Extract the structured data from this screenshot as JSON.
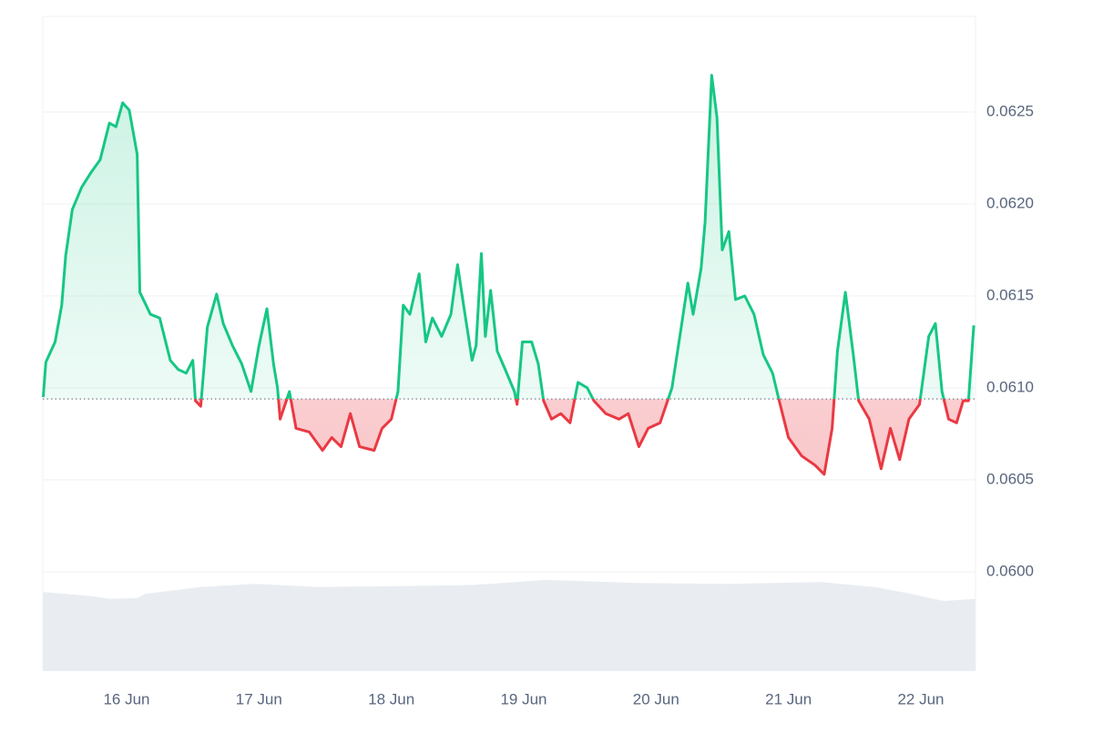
{
  "chart_data": {
    "type": "line",
    "x": [
      15.37,
      15.39,
      15.46,
      15.51,
      15.54,
      15.59,
      15.66,
      15.73,
      15.8,
      15.87,
      15.92,
      15.97,
      16.02,
      16.08,
      16.1,
      16.18,
      16.25,
      16.33,
      16.39,
      16.45,
      16.5,
      16.52,
      16.56,
      16.61,
      16.68,
      16.73,
      16.8,
      16.87,
      16.94,
      17.0,
      17.06,
      17.11,
      17.14,
      17.16,
      17.23,
      17.28,
      17.38,
      17.48,
      17.55,
      17.62,
      17.69,
      17.76,
      17.87,
      17.93,
      18.0,
      18.05,
      18.09,
      18.14,
      18.21,
      18.26,
      18.31,
      18.38,
      18.45,
      18.5,
      18.55,
      18.61,
      18.64,
      18.68,
      18.71,
      18.75,
      18.8,
      18.86,
      18.93,
      18.95,
      18.99,
      19.06,
      19.11,
      19.15,
      19.21,
      19.28,
      19.35,
      19.41,
      19.48,
      19.53,
      19.62,
      19.72,
      19.79,
      19.87,
      19.94,
      20.03,
      20.12,
      20.19,
      20.24,
      20.28,
      20.34,
      20.37,
      20.42,
      20.46,
      20.5,
      20.55,
      20.6,
      20.67,
      20.74,
      20.81,
      20.88,
      20.93,
      21.0,
      21.1,
      21.2,
      21.27,
      21.33,
      21.37,
      21.43,
      21.49,
      21.53,
      21.61,
      21.7,
      21.77,
      21.84,
      21.91,
      21.99,
      22.06,
      22.11,
      22.16,
      22.21,
      22.27,
      22.32,
      22.36,
      22.4
    ],
    "values": [
      0.06095,
      0.06114,
      0.06125,
      0.06145,
      0.06172,
      0.06197,
      0.06209,
      0.06217,
      0.06224,
      0.06244,
      0.06242,
      0.06255,
      0.06251,
      0.06227,
      0.06152,
      0.0614,
      0.06138,
      0.06115,
      0.0611,
      0.06108,
      0.06115,
      0.06093,
      0.0609,
      0.06133,
      0.06151,
      0.06135,
      0.06123,
      0.06113,
      0.06098,
      0.06123,
      0.06143,
      0.06113,
      0.061,
      0.06083,
      0.06098,
      0.06078,
      0.06076,
      0.06066,
      0.06073,
      0.06068,
      0.06086,
      0.06068,
      0.06066,
      0.06078,
      0.06083,
      0.06098,
      0.06145,
      0.0614,
      0.06162,
      0.06125,
      0.06138,
      0.06128,
      0.0614,
      0.06167,
      0.06143,
      0.06115,
      0.06123,
      0.06173,
      0.06128,
      0.06153,
      0.0612,
      0.0611,
      0.06098,
      0.06091,
      0.06125,
      0.06125,
      0.06113,
      0.06093,
      0.06083,
      0.06086,
      0.06081,
      0.06103,
      0.061,
      0.06093,
      0.06086,
      0.06083,
      0.06086,
      0.06068,
      0.06078,
      0.06081,
      0.061,
      0.06133,
      0.06157,
      0.0614,
      0.06165,
      0.0619,
      0.0627,
      0.06247,
      0.06175,
      0.06185,
      0.06148,
      0.0615,
      0.0614,
      0.06118,
      0.06108,
      0.06093,
      0.06073,
      0.06063,
      0.06058,
      0.06053,
      0.06078,
      0.0612,
      0.06152,
      0.06118,
      0.06093,
      0.06083,
      0.06056,
      0.06078,
      0.06061,
      0.06083,
      0.06091,
      0.06128,
      0.06135,
      0.06098,
      0.06083,
      0.06081,
      0.06093,
      0.06093,
      0.06134
    ],
    "baseline": 0.06094,
    "colors": {
      "above": "#16c784",
      "below": "#ea3943"
    },
    "xlim": [
      15.367,
      22.413
    ],
    "xticks": [
      {
        "value": 16,
        "label": "16 Jun"
      },
      {
        "value": 17,
        "label": "17 Jun"
      },
      {
        "value": 18,
        "label": "18 Jun"
      },
      {
        "value": 19,
        "label": "19 Jun"
      },
      {
        "value": 20,
        "label": "20 Jun"
      },
      {
        "value": 21,
        "label": "21 Jun"
      },
      {
        "value": 22,
        "label": "22 Jun"
      }
    ],
    "ylim": [
      0.05946,
      0.06302
    ],
    "yticks": [
      {
        "value": 0.06,
        "label": "0.0600"
      },
      0.0605,
      {
        "value": 0.061,
        "label": "0.0610"
      },
      0.0615,
      {
        "value": 0.062,
        "label": "0.0620"
      },
      0.0625
    ],
    "grid": true,
    "volume": {
      "color": "#e9edf2",
      "x": [
        15.37,
        15.73,
        15.87,
        16.08,
        16.14,
        16.56,
        16.97,
        17.45,
        18.14,
        18.62,
        19.17,
        19.86,
        20.55,
        21.24,
        21.65,
        21.93,
        22.17,
        22.41
      ],
      "values": [
        79,
        75,
        72,
        73,
        77,
        84,
        87,
        84,
        85,
        86,
        91,
        88,
        87,
        89,
        84,
        77,
        70,
        72
      ],
      "ylim": [
        0,
        100
      ]
    }
  }
}
